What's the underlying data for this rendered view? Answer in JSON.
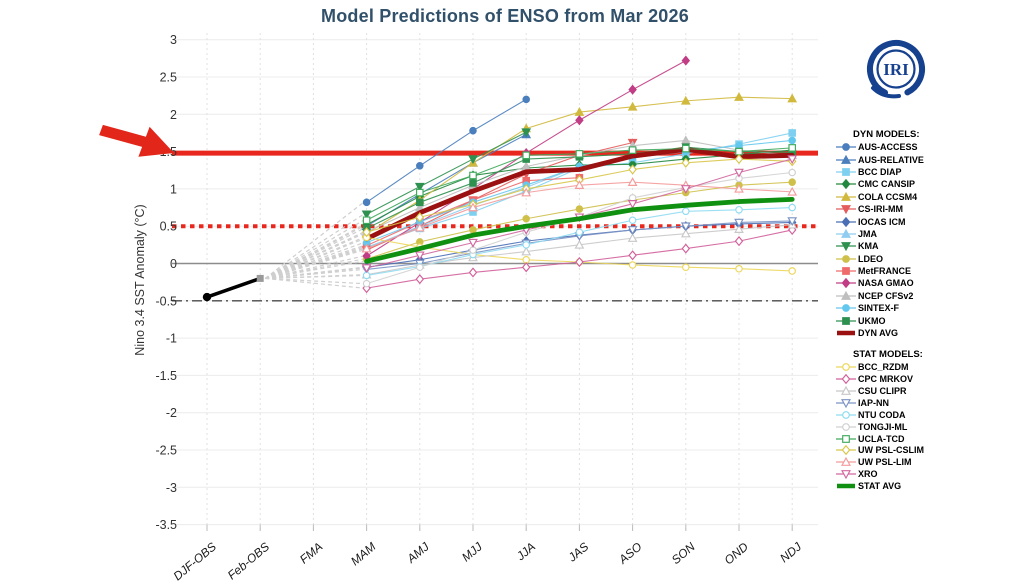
{
  "logo": {
    "text": "IRI",
    "color": "#16418f"
  },
  "legend": {
    "dyn_header": "DYN MODELS:",
    "stat_header": "STAT MODELS:"
  },
  "annotations": {
    "arrow_color": "#e2271a",
    "arrow_points_at": "1.5"
  },
  "chart_data": {
    "type": "line",
    "title": "Model Predictions of ENSO from Mar 2026",
    "xlabel": "",
    "ylabel": "Nino 3.4 SST Anomaly (°C)",
    "ylim": [
      -3.5,
      3
    ],
    "yticks": [
      3,
      2.5,
      2,
      1.5,
      1,
      0.5,
      0,
      -0.5,
      -1,
      -1.5,
      -2,
      -2.5,
      -3,
      -3.5
    ],
    "grid": true,
    "legend_position": "right",
    "categories": [
      "DJF-OBS",
      "Feb-OBS",
      "FMA",
      "MAM",
      "AMJ",
      "MJJ",
      "JJA",
      "JAS",
      "ASO",
      "SON",
      "OND",
      "NDJ"
    ],
    "observations": {
      "name": "OBS",
      "color": "#000000",
      "points": [
        {
          "category": "DJF-OBS",
          "value": -0.45
        },
        {
          "category": "Feb-OBS",
          "value": -0.2
        }
      ]
    },
    "fan_origin": {
      "category": "Feb-OBS",
      "value": -0.2
    },
    "series_start_category": "MAM",
    "reference_lines": [
      {
        "name": "strong-el-nino-line",
        "value": 1.48,
        "style": "solid",
        "color": "#e8281e",
        "width": 5
      },
      {
        "name": "el-nino-threshold",
        "value": 0.5,
        "style": "dotted",
        "color": "#e8281e",
        "width": 4
      },
      {
        "name": "zero-line",
        "value": 0,
        "style": "solid",
        "color": "#8c8c8c",
        "width": 1.4
      },
      {
        "name": "la-nina-threshold",
        "value": -0.5,
        "style": "dashdot",
        "color": "#4a4a4a",
        "width": 1.4
      }
    ],
    "series": [
      {
        "name": "AUS-ACCESS",
        "group": "dyn",
        "color": "#4a7ebc",
        "marker": "circle",
        "filled": true,
        "avg": false,
        "values": [
          0.82,
          1.31,
          1.78,
          2.2
        ]
      },
      {
        "name": "AUS-RELATIVE",
        "group": "dyn",
        "color": "#4a7ebc",
        "marker": "triangle-up",
        "filled": true,
        "avg": false,
        "values": [
          0.5,
          0.93,
          1.35,
          1.73
        ]
      },
      {
        "name": "BCC DIAP",
        "group": "dyn",
        "color": "#7fd0f0",
        "marker": "square",
        "filled": true,
        "avg": false,
        "values": [
          0.22,
          0.47,
          0.69,
          0.97,
          1.28,
          1.35,
          1.47,
          1.6,
          1.75
        ]
      },
      {
        "name": "CMC CANSIP",
        "group": "dyn",
        "color": "#22883f",
        "marker": "diamond",
        "filled": true,
        "avg": false,
        "values": [
          0.52,
          0.9,
          1.18,
          1.28,
          1.32,
          1.33,
          1.4,
          1.46,
          1.52
        ]
      },
      {
        "name": "COLA CCSM4",
        "group": "dyn",
        "color": "#d1b93e",
        "marker": "triangle-up",
        "filled": true,
        "avg": false,
        "values": [
          0.4,
          0.85,
          1.35,
          1.81,
          2.03,
          2.1,
          2.18,
          2.23,
          2.21
        ]
      },
      {
        "name": "CS-IRI-MM",
        "group": "dyn",
        "color": "#e45c5c",
        "marker": "triangle-down",
        "filled": true,
        "avg": false,
        "values": [
          0.18,
          0.5,
          0.85,
          1.2,
          1.45,
          1.62
        ]
      },
      {
        "name": "IOCAS ICM",
        "group": "dyn",
        "color": "#4a6fb5",
        "marker": "diamond",
        "filled": true,
        "avg": false,
        "values": [
          -0.05,
          0.05,
          0.18,
          0.3,
          0.38,
          0.45,
          0.5,
          0.53,
          0.55
        ]
      },
      {
        "name": "JMA",
        "group": "dyn",
        "color": "#90cdf0",
        "marker": "triangle-up",
        "filled": true,
        "avg": false,
        "values": [
          0.2,
          0.5,
          0.78,
          1.02,
          1.3
        ]
      },
      {
        "name": "KMA",
        "group": "dyn",
        "color": "#2f9150",
        "marker": "triangle-down",
        "filled": true,
        "avg": false,
        "values": [
          0.66,
          1.03,
          1.4,
          1.76
        ]
      },
      {
        "name": "LDEO",
        "group": "dyn",
        "color": "#cfc04a",
        "marker": "circle",
        "filled": true,
        "avg": false,
        "values": [
          0.06,
          0.29,
          0.45,
          0.6,
          0.73,
          0.85,
          0.95,
          1.05,
          1.09
        ]
      },
      {
        "name": "MetFRANCE",
        "group": "dyn",
        "color": "#ef6a6a",
        "marker": "square",
        "filled": true,
        "avg": false,
        "values": [
          0.24,
          0.56,
          0.85,
          1.11,
          1.15
        ]
      },
      {
        "name": "NASA GMAO",
        "group": "dyn",
        "color": "#c13d85",
        "marker": "diamond",
        "filled": true,
        "avg": false,
        "values": [
          0.1,
          0.55,
          1.0,
          1.48,
          1.92,
          2.33,
          2.72
        ]
      },
      {
        "name": "NCEP CFSv2",
        "group": "dyn",
        "color": "#bfbfbf",
        "marker": "triangle-up",
        "filled": true,
        "avg": false,
        "values": [
          0.42,
          0.75,
          1.05,
          1.3,
          1.45,
          1.58,
          1.65,
          1.52,
          1.45
        ]
      },
      {
        "name": "SINTEX-F",
        "group": "dyn",
        "color": "#63c8ee",
        "marker": "circle",
        "filled": true,
        "avg": false,
        "values": [
          0.28,
          0.56,
          0.82,
          1.05,
          1.3,
          1.42,
          1.5,
          1.58,
          1.65
        ]
      },
      {
        "name": "UKMO",
        "group": "dyn",
        "color": "#2f9150",
        "marker": "square",
        "filled": true,
        "avg": false,
        "values": [
          0.47,
          0.82,
          1.08,
          1.4,
          1.43,
          1.47,
          1.56,
          1.5,
          1.49
        ]
      },
      {
        "name": "DYN AVG",
        "group": "dyn",
        "color": "#9b1010",
        "marker": "line",
        "filled": true,
        "avg": true,
        "values": [
          0.33,
          0.68,
          0.97,
          1.23,
          1.26,
          1.44,
          1.53,
          1.43,
          1.45
        ]
      },
      {
        "name": "BCC_RZDM",
        "group": "stat",
        "color": "#ecd75a",
        "marker": "circle",
        "filled": false,
        "avg": false,
        "values": [
          0.35,
          0.22,
          0.12,
          0.05,
          0.02,
          -0.02,
          -0.05,
          -0.07,
          -0.1
        ]
      },
      {
        "name": "CPC MRKOV",
        "group": "stat",
        "color": "#d25f9a",
        "marker": "diamond",
        "filled": false,
        "avg": false,
        "values": [
          -0.33,
          -0.21,
          -0.12,
          -0.05,
          0.02,
          0.11,
          0.2,
          0.3,
          0.45
        ]
      },
      {
        "name": "CSU CLIPR",
        "group": "stat",
        "color": "#c8c8c8",
        "marker": "triangle-up",
        "filled": false,
        "avg": false,
        "values": [
          -0.15,
          -0.02,
          0.08,
          0.16,
          0.25,
          0.34,
          0.4,
          0.46,
          0.52
        ]
      },
      {
        "name": "IAP-NN",
        "group": "stat",
        "color": "#7a93c4",
        "marker": "triangle-down",
        "filled": false,
        "avg": false,
        "values": [
          -0.08,
          0.0,
          0.14,
          0.27,
          0.37,
          0.45,
          0.5,
          0.55,
          0.57
        ]
      },
      {
        "name": "NTU CODA",
        "group": "stat",
        "color": "#8fdbf2",
        "marker": "circle",
        "filled": false,
        "avg": false,
        "values": [
          -0.16,
          -0.04,
          0.12,
          0.25,
          0.42,
          0.58,
          0.7,
          0.72,
          0.75
        ]
      },
      {
        "name": "TONGJI-ML",
        "group": "stat",
        "color": "#d0d0d0",
        "marker": "circle",
        "filled": false,
        "avg": false,
        "values": [
          -0.27,
          -0.05,
          0.18,
          0.42,
          0.62,
          0.88,
          1.02,
          1.14,
          1.22
        ]
      },
      {
        "name": "UCLA-TCD",
        "group": "stat",
        "color": "#3faa5c",
        "marker": "square",
        "filled": false,
        "avg": false,
        "values": [
          0.58,
          0.95,
          1.18,
          1.45,
          1.47,
          1.52,
          1.54,
          1.5,
          1.55
        ]
      },
      {
        "name": "UW PSL-CSLIM",
        "group": "stat",
        "color": "#d8c64a",
        "marker": "diamond",
        "filled": false,
        "avg": false,
        "values": [
          0.42,
          0.62,
          0.79,
          1.0,
          1.12,
          1.26,
          1.35,
          1.4,
          1.37
        ]
      },
      {
        "name": "UW PSL-LIM",
        "group": "stat",
        "color": "#f49b9b",
        "marker": "triangle-up",
        "filled": false,
        "avg": false,
        "values": [
          0.2,
          0.48,
          0.75,
          0.95,
          1.05,
          1.09,
          1.05,
          1.0,
          0.96
        ]
      },
      {
        "name": "XRO",
        "group": "stat",
        "color": "#d2679f",
        "marker": "triangle-down",
        "filled": false,
        "avg": false,
        "values": [
          -0.06,
          0.11,
          0.28,
          0.45,
          0.62,
          0.8,
          1.0,
          1.22,
          1.4
        ]
      },
      {
        "name": "STAT AVG",
        "group": "stat",
        "color": "#109010",
        "marker": "line",
        "filled": true,
        "avg": true,
        "values": [
          0.03,
          0.2,
          0.38,
          0.5,
          0.6,
          0.72,
          0.78,
          0.83,
          0.86
        ]
      }
    ]
  }
}
